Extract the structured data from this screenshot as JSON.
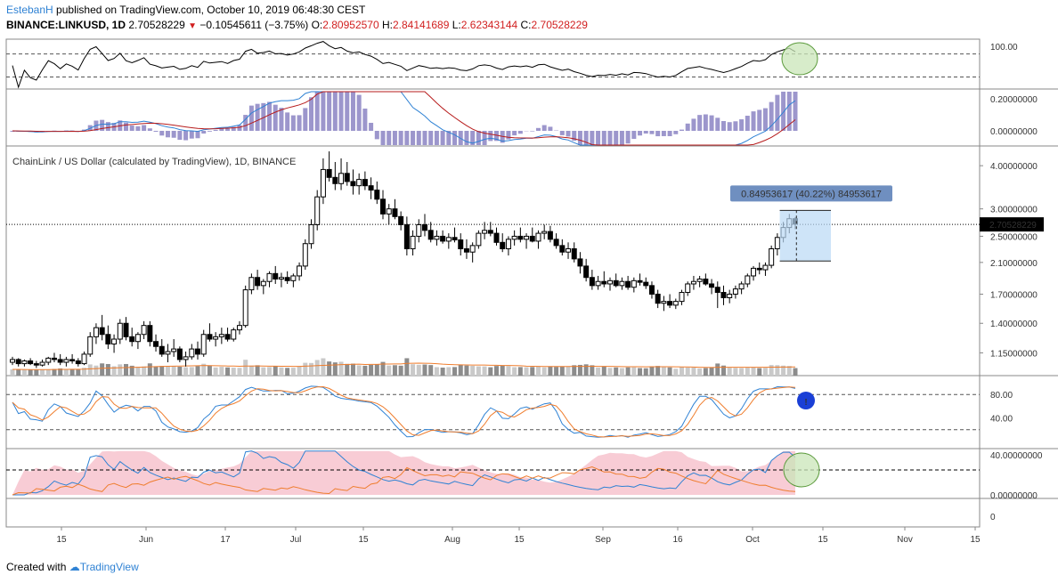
{
  "header": {
    "author": "EstebanH",
    "published_text": "published on TradingView.com, October 10, 2019 06:48:30 CEST",
    "symbol": "BINANCE:LINKUSD, 1D",
    "last": "2.70528229",
    "change": "−0.10545611 (−3.75%)",
    "o_label": "O:",
    "o_value": "2.80952570",
    "h_label": "H:",
    "h_value": "2.84141689",
    "l_label": "L:",
    "l_value": "2.62343144",
    "c_label": "C:",
    "c_value": "2.70528229"
  },
  "footer": {
    "created_with": "Created with",
    "brand": "TradingView"
  },
  "colors": {
    "up": "#ffffff",
    "down": "#000000",
    "macd_line": "#2f82d4",
    "signal_line": "#b71c1c",
    "histogram": "#9c96cc",
    "stoch_k": "#2f82d4",
    "stoch_d": "#ef7d2d",
    "volume_ma": "#ef7d2d",
    "dmi_fill": "#f7c6d0",
    "ellipse": "#c9e6b8",
    "measure": "#b9d8f5",
    "tooltip": "#6f8fc0",
    "alert_icon": "#1a3fd6"
  },
  "chart_data": {
    "type": "candlestick",
    "title": "ChainLink / US Dollar (calculated by TradingView), 1D, BINANCE",
    "x_ticks": [
      "15",
      "Jun",
      "17",
      "Jul",
      "15",
      "Aug",
      "15",
      "Sep",
      "16",
      "Oct",
      "15",
      "Nov",
      "15"
    ],
    "price_ticks": [
      "4.00000000",
      "3.00000000",
      "2.50000000",
      "2.10000000",
      "1.70000000",
      "1.40000000",
      "1.15000000"
    ],
    "price_scale": "log",
    "last_price_label": "2.70528229",
    "measure_label": "0.84953617 (40.22%) 84953617",
    "candles": [
      [
        1.08,
        1.12,
        1.06,
        1.1
      ],
      [
        1.1,
        1.11,
        1.05,
        1.07
      ],
      [
        1.07,
        1.1,
        1.05,
        1.09
      ],
      [
        1.09,
        1.11,
        1.06,
        1.07
      ],
      [
        1.07,
        1.09,
        1.04,
        1.06
      ],
      [
        1.06,
        1.1,
        1.05,
        1.08
      ],
      [
        1.08,
        1.12,
        1.06,
        1.11
      ],
      [
        1.11,
        1.15,
        1.08,
        1.1
      ],
      [
        1.1,
        1.14,
        1.06,
        1.08
      ],
      [
        1.08,
        1.12,
        1.05,
        1.1
      ],
      [
        1.1,
        1.14,
        1.07,
        1.09
      ],
      [
        1.09,
        1.11,
        1.05,
        1.07
      ],
      [
        1.07,
        1.16,
        1.06,
        1.14
      ],
      [
        1.14,
        1.32,
        1.12,
        1.28
      ],
      [
        1.28,
        1.4,
        1.22,
        1.36
      ],
      [
        1.36,
        1.48,
        1.25,
        1.3
      ],
      [
        1.3,
        1.38,
        1.18,
        1.22
      ],
      [
        1.22,
        1.3,
        1.15,
        1.26
      ],
      [
        1.26,
        1.44,
        1.22,
        1.4
      ],
      [
        1.4,
        1.46,
        1.25,
        1.28
      ],
      [
        1.28,
        1.36,
        1.2,
        1.24
      ],
      [
        1.24,
        1.32,
        1.18,
        1.3
      ],
      [
        1.3,
        1.42,
        1.26,
        1.38
      ],
      [
        1.38,
        1.42,
        1.2,
        1.24
      ],
      [
        1.24,
        1.3,
        1.16,
        1.2
      ],
      [
        1.2,
        1.26,
        1.12,
        1.14
      ],
      [
        1.14,
        1.22,
        1.08,
        1.16
      ],
      [
        1.16,
        1.26,
        1.12,
        1.18
      ],
      [
        1.18,
        1.2,
        1.08,
        1.1
      ],
      [
        1.1,
        1.16,
        1.05,
        1.12
      ],
      [
        1.12,
        1.22,
        1.1,
        1.18
      ],
      [
        1.18,
        1.24,
        1.1,
        1.14
      ],
      [
        1.14,
        1.34,
        1.12,
        1.3
      ],
      [
        1.3,
        1.4,
        1.24,
        1.26
      ],
      [
        1.26,
        1.32,
        1.2,
        1.28
      ],
      [
        1.28,
        1.36,
        1.22,
        1.3
      ],
      [
        1.3,
        1.36,
        1.24,
        1.26
      ],
      [
        1.26,
        1.36,
        1.24,
        1.34
      ],
      [
        1.34,
        1.42,
        1.3,
        1.38
      ],
      [
        1.38,
        1.8,
        1.36,
        1.75
      ],
      [
        1.75,
        1.95,
        1.7,
        1.9
      ],
      [
        1.9,
        2.0,
        1.75,
        1.8
      ],
      [
        1.8,
        1.88,
        1.7,
        1.85
      ],
      [
        1.85,
        1.98,
        1.78,
        1.95
      ],
      [
        1.95,
        2.05,
        1.82,
        1.88
      ],
      [
        1.88,
        1.96,
        1.78,
        1.9
      ],
      [
        1.9,
        1.98,
        1.82,
        1.86
      ],
      [
        1.86,
        1.95,
        1.78,
        1.92
      ],
      [
        1.92,
        2.1,
        1.86,
        2.05
      ],
      [
        2.05,
        2.45,
        2.0,
        2.38
      ],
      [
        2.38,
        2.8,
        2.3,
        2.7
      ],
      [
        2.7,
        3.4,
        2.6,
        3.25
      ],
      [
        3.25,
        4.2,
        3.1,
        3.9
      ],
      [
        3.9,
        4.4,
        3.6,
        3.7
      ],
      [
        3.7,
        4.1,
        3.4,
        3.55
      ],
      [
        3.55,
        4.2,
        3.4,
        3.8
      ],
      [
        3.8,
        4.1,
        3.5,
        3.6
      ],
      [
        3.6,
        3.9,
        3.3,
        3.5
      ],
      [
        3.5,
        3.8,
        3.3,
        3.65
      ],
      [
        3.65,
        3.85,
        3.4,
        3.5
      ],
      [
        3.5,
        3.7,
        3.2,
        3.4
      ],
      [
        3.4,
        3.6,
        3.1,
        3.2
      ],
      [
        3.2,
        3.4,
        2.8,
        2.9
      ],
      [
        2.9,
        3.1,
        2.7,
        3.0
      ],
      [
        3.0,
        3.2,
        2.8,
        2.85
      ],
      [
        2.85,
        2.95,
        2.6,
        2.7
      ],
      [
        2.7,
        2.85,
        2.2,
        2.3
      ],
      [
        2.3,
        2.6,
        2.2,
        2.5
      ],
      [
        2.5,
        2.8,
        2.4,
        2.7
      ],
      [
        2.7,
        2.9,
        2.5,
        2.6
      ],
      [
        2.6,
        2.75,
        2.4,
        2.45
      ],
      [
        2.45,
        2.6,
        2.35,
        2.5
      ],
      [
        2.5,
        2.6,
        2.38,
        2.42
      ],
      [
        2.42,
        2.55,
        2.3,
        2.48
      ],
      [
        2.48,
        2.65,
        2.4,
        2.44
      ],
      [
        2.44,
        2.55,
        2.2,
        2.3
      ],
      [
        2.3,
        2.45,
        2.15,
        2.25
      ],
      [
        2.25,
        2.4,
        2.1,
        2.35
      ],
      [
        2.35,
        2.6,
        2.3,
        2.55
      ],
      [
        2.55,
        2.75,
        2.45,
        2.6
      ],
      [
        2.6,
        2.75,
        2.5,
        2.55
      ],
      [
        2.55,
        2.65,
        2.35,
        2.4
      ],
      [
        2.4,
        2.55,
        2.25,
        2.3
      ],
      [
        2.3,
        2.5,
        2.2,
        2.45
      ],
      [
        2.45,
        2.6,
        2.35,
        2.5
      ],
      [
        2.5,
        2.65,
        2.4,
        2.45
      ],
      [
        2.45,
        2.55,
        2.3,
        2.5
      ],
      [
        2.5,
        2.65,
        2.4,
        2.42
      ],
      [
        2.42,
        2.6,
        2.3,
        2.55
      ],
      [
        2.55,
        2.7,
        2.45,
        2.58
      ],
      [
        2.58,
        2.68,
        2.4,
        2.45
      ],
      [
        2.45,
        2.55,
        2.3,
        2.35
      ],
      [
        2.35,
        2.45,
        2.2,
        2.25
      ],
      [
        2.25,
        2.4,
        2.15,
        2.3
      ],
      [
        2.3,
        2.4,
        2.1,
        2.15
      ],
      [
        2.15,
        2.25,
        1.95,
        2.05
      ],
      [
        2.05,
        2.15,
        1.85,
        1.9
      ],
      [
        1.9,
        2.0,
        1.75,
        1.8
      ],
      [
        1.8,
        1.92,
        1.75,
        1.85
      ],
      [
        1.85,
        1.98,
        1.78,
        1.82
      ],
      [
        1.82,
        1.9,
        1.74,
        1.86
      ],
      [
        1.86,
        1.95,
        1.78,
        1.8
      ],
      [
        1.8,
        1.9,
        1.75,
        1.85
      ],
      [
        1.85,
        1.92,
        1.75,
        1.78
      ],
      [
        1.78,
        1.9,
        1.72,
        1.86
      ],
      [
        1.86,
        1.95,
        1.8,
        1.84
      ],
      [
        1.84,
        1.9,
        1.76,
        1.8
      ],
      [
        1.8,
        1.85,
        1.65,
        1.7
      ],
      [
        1.7,
        1.75,
        1.55,
        1.6
      ],
      [
        1.6,
        1.68,
        1.52,
        1.62
      ],
      [
        1.62,
        1.7,
        1.55,
        1.58
      ],
      [
        1.58,
        1.65,
        1.54,
        1.62
      ],
      [
        1.62,
        1.75,
        1.58,
        1.72
      ],
      [
        1.72,
        1.85,
        1.68,
        1.82
      ],
      [
        1.82,
        1.92,
        1.75,
        1.85
      ],
      [
        1.85,
        1.92,
        1.78,
        1.88
      ],
      [
        1.88,
        1.95,
        1.8,
        1.82
      ],
      [
        1.82,
        1.88,
        1.7,
        1.78
      ],
      [
        1.78,
        1.85,
        1.55,
        1.72
      ],
      [
        1.72,
        1.8,
        1.58,
        1.66
      ],
      [
        1.66,
        1.75,
        1.6,
        1.7
      ],
      [
        1.7,
        1.8,
        1.65,
        1.76
      ],
      [
        1.76,
        1.85,
        1.7,
        1.82
      ],
      [
        1.82,
        1.95,
        1.78,
        1.92
      ],
      [
        1.92,
        2.05,
        1.86,
        2.02
      ],
      [
        2.02,
        2.1,
        1.94,
        2.0
      ],
      [
        2.0,
        2.1,
        1.92,
        2.06
      ],
      [
        2.06,
        2.35,
        2.02,
        2.3
      ],
      [
        2.3,
        2.55,
        2.2,
        2.48
      ],
      [
        2.48,
        2.75,
        2.4,
        2.65
      ],
      [
        2.65,
        2.9,
        2.55,
        2.81
      ],
      [
        2.81,
        2.84,
        2.62,
        2.71
      ]
    ],
    "volume_ticks": [],
    "rsi": {
      "ticks": [
        "100.00"
      ],
      "levels": [
        70,
        30
      ],
      "range": [
        0,
        100
      ]
    },
    "macd": {
      "ticks": [
        "0.20000000",
        "0.00000000"
      ]
    },
    "stochastic": {
      "ticks": [
        "80.00",
        "40.00"
      ],
      "levels": [
        80,
        20
      ],
      "range": [
        0,
        100
      ]
    },
    "dmi": {
      "ticks": [
        "40.00000000",
        "0.00000000",
        "0"
      ],
      "level": 25,
      "range": [
        0,
        45
      ]
    }
  }
}
